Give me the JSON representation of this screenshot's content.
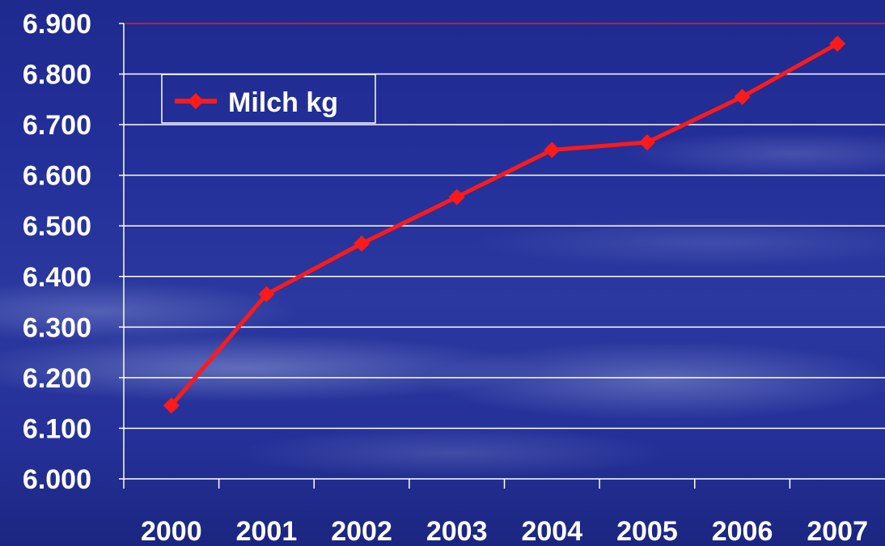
{
  "chart_data": {
    "type": "line",
    "title": "",
    "xlabel": "",
    "ylabel": "",
    "categories": [
      "2000",
      "2001",
      "2002",
      "2003",
      "2004",
      "2005",
      "2006",
      "2007"
    ],
    "ylim": [
      6000,
      6900
    ],
    "y_ticks": [
      6000,
      6100,
      6200,
      6300,
      6400,
      6500,
      6600,
      6700,
      6800,
      6900
    ],
    "y_tick_labels": [
      "6.000",
      "6.100",
      "6.200",
      "6.300",
      "6.400",
      "6.500",
      "6.600",
      "6.700",
      "6.800",
      "6.900"
    ],
    "series": [
      {
        "name": "Milch kg",
        "values": [
          6145,
          6365,
          6465,
          6557,
          6650,
          6665,
          6755,
          6860
        ],
        "color": "#ff1a1a",
        "marker": "diamond"
      }
    ],
    "legend": {
      "placement": "top-left",
      "entries": [
        "Milch kg"
      ]
    },
    "grid": true,
    "colors": {
      "gridline": "#ffffff",
      "top_gridline": "#c0202a",
      "text": "#ffffff",
      "background": "#24309a"
    }
  }
}
